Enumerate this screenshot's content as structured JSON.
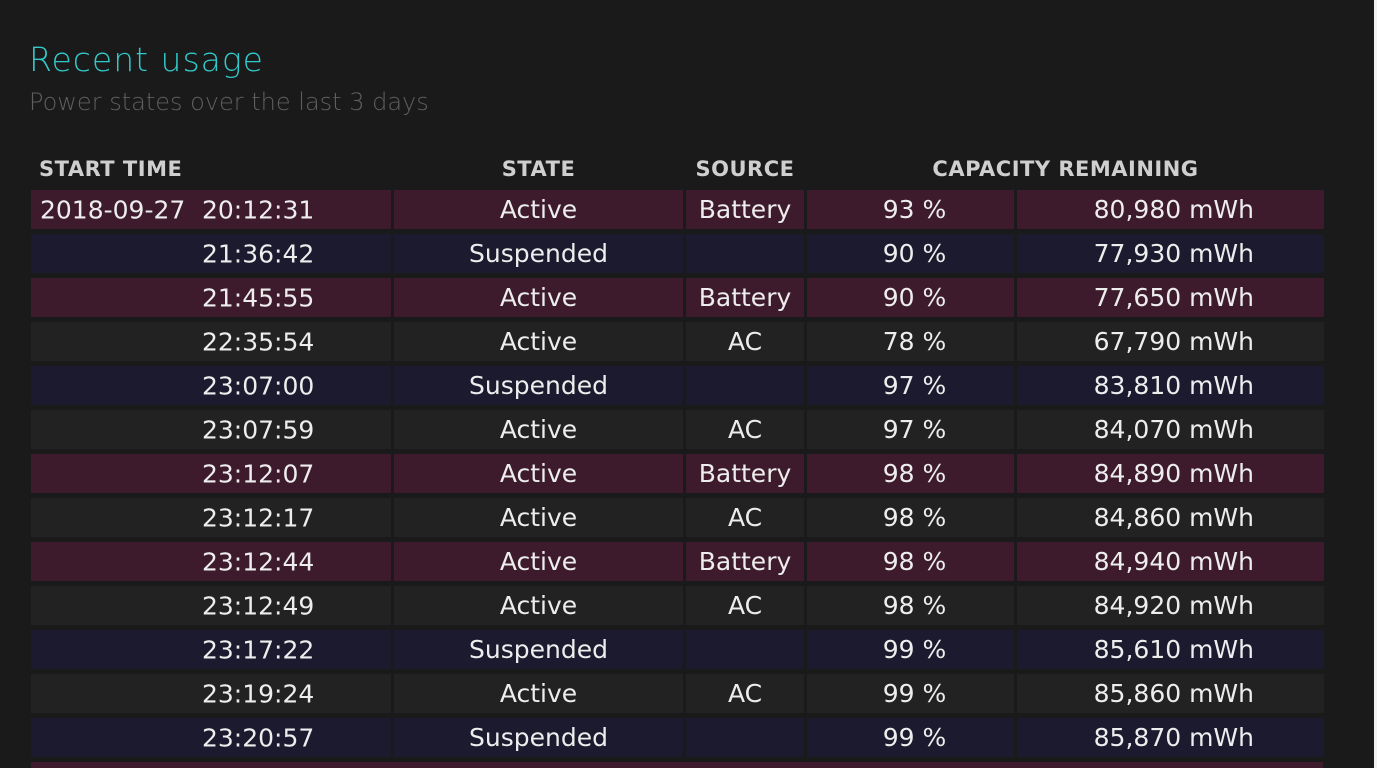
{
  "header": {
    "title": "Recent usage",
    "subtitle": "Power states over the last 3 days"
  },
  "table": {
    "columns": {
      "start_time": "START TIME",
      "state": "STATE",
      "source": "SOURCE",
      "capacity_remaining": "CAPACITY REMAINING"
    },
    "rows": [
      {
        "date": "2018-09-27",
        "time": "20:12:31",
        "state": "Active",
        "source": "Battery",
        "percent": "93 %",
        "capacity": "80,980 mWh"
      },
      {
        "date": "",
        "time": "21:36:42",
        "state": "Suspended",
        "source": "",
        "percent": "90 %",
        "capacity": "77,930 mWh"
      },
      {
        "date": "",
        "time": "21:45:55",
        "state": "Active",
        "source": "Battery",
        "percent": "90 %",
        "capacity": "77,650 mWh"
      },
      {
        "date": "",
        "time": "22:35:54",
        "state": "Active",
        "source": "AC",
        "percent": "78 %",
        "capacity": "67,790 mWh"
      },
      {
        "date": "",
        "time": "23:07:00",
        "state": "Suspended",
        "source": "",
        "percent": "97 %",
        "capacity": "83,810 mWh"
      },
      {
        "date": "",
        "time": "23:07:59",
        "state": "Active",
        "source": "AC",
        "percent": "97 %",
        "capacity": "84,070 mWh"
      },
      {
        "date": "",
        "time": "23:12:07",
        "state": "Active",
        "source": "Battery",
        "percent": "98 %",
        "capacity": "84,890 mWh"
      },
      {
        "date": "",
        "time": "23:12:17",
        "state": "Active",
        "source": "AC",
        "percent": "98 %",
        "capacity": "84,860 mWh"
      },
      {
        "date": "",
        "time": "23:12:44",
        "state": "Active",
        "source": "Battery",
        "percent": "98 %",
        "capacity": "84,940 mWh"
      },
      {
        "date": "",
        "time": "23:12:49",
        "state": "Active",
        "source": "AC",
        "percent": "98 %",
        "capacity": "84,920 mWh"
      },
      {
        "date": "",
        "time": "23:17:22",
        "state": "Suspended",
        "source": "",
        "percent": "99 %",
        "capacity": "85,610 mWh"
      },
      {
        "date": "",
        "time": "23:19:24",
        "state": "Active",
        "source": "AC",
        "percent": "99 %",
        "capacity": "85,860 mWh"
      },
      {
        "date": "",
        "time": "23:20:57",
        "state": "Suspended",
        "source": "",
        "percent": "99 %",
        "capacity": "85,870 mWh"
      }
    ]
  },
  "colors": {
    "title": "#33c9c9",
    "subtitle": "#5f5f5f",
    "background": "#1a1a1a",
    "row_battery": "#3d1b2c",
    "row_ac": "#222222",
    "row_suspended": "#1b1a2f"
  }
}
